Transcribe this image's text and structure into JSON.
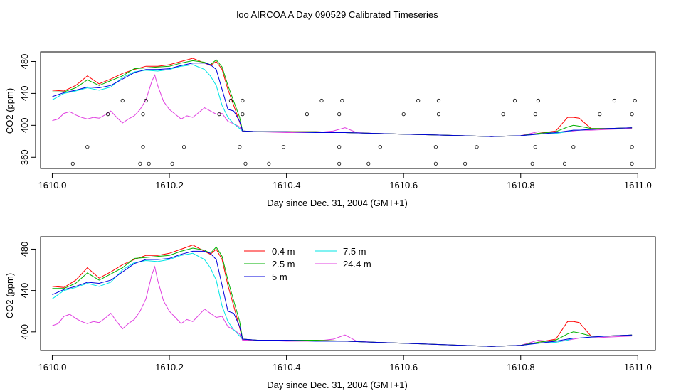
{
  "chart_data": [
    {
      "type": "line",
      "title": "loo AIRCOA A  Day 090529  Calibrated Timeseries",
      "xlabel": "Day since Dec. 31, 2004 (GMT+1)",
      "ylabel": "CO2 (ppm)",
      "xlim": [
        1609.98,
        1611.03
      ],
      "ylim": [
        346,
        492
      ],
      "xticks": [
        "1610.0",
        "1610.2",
        "1610.4",
        "1610.6",
        "1610.8",
        "1611.0"
      ],
      "yticks": [
        "360",
        "400",
        "440",
        "480"
      ],
      "legend": "none",
      "series": [
        {
          "name": "0.4 m",
          "color": "#ff0000",
          "x": [
            1610.0,
            1610.02,
            1610.04,
            1610.06,
            1610.08,
            1610.1,
            1610.12,
            1610.14,
            1610.16,
            1610.18,
            1610.2,
            1610.22,
            1610.24,
            1610.26,
            1610.27,
            1610.28,
            1610.29,
            1610.3,
            1610.31,
            1610.32,
            1610.325,
            1610.35,
            1610.4,
            1610.45,
            1610.5,
            1610.55,
            1610.6,
            1610.65,
            1610.7,
            1610.75,
            1610.8,
            1610.83,
            1610.86,
            1610.88,
            1610.89,
            1610.9,
            1610.92,
            1610.95,
            1610.99
          ],
          "y": [
            444,
            443,
            450,
            462,
            452,
            458,
            465,
            470,
            474,
            474,
            476,
            480,
            484,
            478,
            475,
            480,
            470,
            445,
            425,
            404,
            393,
            392,
            392,
            392,
            391,
            390,
            389,
            388,
            387,
            386,
            387,
            390,
            393,
            410,
            410,
            409,
            396,
            396,
            397
          ]
        },
        {
          "name": "2.5 m",
          "color": "#00b000",
          "x": [
            1610.0,
            1610.02,
            1610.04,
            1610.06,
            1610.08,
            1610.1,
            1610.12,
            1610.14,
            1610.16,
            1610.18,
            1610.2,
            1610.22,
            1610.24,
            1610.26,
            1610.27,
            1610.28,
            1610.29,
            1610.3,
            1610.31,
            1610.32,
            1610.325,
            1610.35,
            1610.4,
            1610.45,
            1610.5,
            1610.55,
            1610.6,
            1610.65,
            1610.7,
            1610.75,
            1610.8,
            1610.83,
            1610.86,
            1610.88,
            1610.89,
            1610.9,
            1610.92,
            1610.95,
            1610.99
          ],
          "y": [
            442,
            442,
            447,
            457,
            450,
            456,
            462,
            471,
            472,
            473,
            474,
            478,
            481,
            479,
            476,
            482,
            473,
            450,
            430,
            410,
            393,
            392,
            392,
            392,
            391,
            390,
            389,
            388,
            387,
            386,
            387,
            390,
            392,
            398,
            400,
            399,
            396,
            396,
            397
          ]
        },
        {
          "name": "5 m",
          "color": "#0000dd",
          "x": [
            1610.0,
            1610.02,
            1610.04,
            1610.06,
            1610.08,
            1610.1,
            1610.12,
            1610.14,
            1610.16,
            1610.18,
            1610.2,
            1610.22,
            1610.24,
            1610.26,
            1610.27,
            1610.28,
            1610.29,
            1610.3,
            1610.31,
            1610.32,
            1610.325,
            1610.35,
            1610.4,
            1610.45,
            1610.5,
            1610.55,
            1610.6,
            1610.65,
            1610.7,
            1610.75,
            1610.8,
            1610.83,
            1610.86,
            1610.88,
            1610.89,
            1610.9,
            1610.92,
            1610.95,
            1610.99
          ],
          "y": [
            436,
            441,
            444,
            448,
            447,
            450,
            458,
            466,
            470,
            470,
            471,
            475,
            478,
            478,
            476,
            470,
            445,
            420,
            418,
            405,
            393,
            392,
            392,
            391,
            391,
            390,
            389,
            388,
            387,
            386,
            387,
            389,
            391,
            393,
            394,
            394,
            395,
            396,
            397
          ]
        },
        {
          "name": "7.5 m",
          "color": "#00e5e5",
          "x": [
            1610.0,
            1610.02,
            1610.04,
            1610.06,
            1610.08,
            1610.1,
            1610.12,
            1610.14,
            1610.16,
            1610.18,
            1610.2,
            1610.22,
            1610.24,
            1610.26,
            1610.27,
            1610.28,
            1610.29,
            1610.3,
            1610.31,
            1610.32,
            1610.325,
            1610.35,
            1610.4,
            1610.45,
            1610.5,
            1610.55,
            1610.6,
            1610.65,
            1610.7,
            1610.75,
            1610.8,
            1610.83,
            1610.86,
            1610.88,
            1610.89,
            1610.9,
            1610.92,
            1610.95,
            1610.99
          ],
          "y": [
            432,
            440,
            443,
            447,
            444,
            448,
            460,
            467,
            469,
            468,
            470,
            474,
            476,
            470,
            462,
            450,
            425,
            410,
            402,
            396,
            393,
            392,
            392,
            391,
            391,
            390,
            389,
            388,
            387,
            386,
            387,
            389,
            390,
            392,
            394,
            394,
            395,
            396,
            397
          ]
        },
        {
          "name": "24.4 m",
          "color": "#e040e0",
          "x": [
            1610.0,
            1610.01,
            1610.02,
            1610.03,
            1610.04,
            1610.05,
            1610.06,
            1610.07,
            1610.08,
            1610.09,
            1610.1,
            1610.11,
            1610.12,
            1610.13,
            1610.14,
            1610.15,
            1610.16,
            1610.17,
            1610.175,
            1610.18,
            1610.19,
            1610.2,
            1610.21,
            1610.22,
            1610.23,
            1610.24,
            1610.25,
            1610.26,
            1610.27,
            1610.28,
            1610.29,
            1610.3,
            1610.31,
            1610.32,
            1610.325,
            1610.35,
            1610.4,
            1610.45,
            1610.48,
            1610.5,
            1610.52,
            1610.55,
            1610.6,
            1610.65,
            1610.7,
            1610.75,
            1610.8,
            1610.83,
            1610.86,
            1610.88,
            1610.9,
            1610.92,
            1610.95,
            1610.99
          ],
          "y": [
            406,
            408,
            415,
            417,
            413,
            410,
            408,
            410,
            409,
            413,
            418,
            410,
            403,
            408,
            412,
            420,
            432,
            455,
            463,
            450,
            430,
            420,
            414,
            408,
            412,
            410,
            416,
            422,
            418,
            414,
            415,
            405,
            402,
            398,
            392,
            392,
            391,
            391,
            393,
            397,
            391,
            390,
            389,
            388,
            387,
            386,
            387,
            392,
            390,
            392,
            394,
            394,
            395,
            396
          ]
        }
      ],
      "flags": {
        "x": [
          1610.035,
          1610.06,
          1610.095,
          1610.12,
          1610.15,
          1610.155,
          1610.155,
          1610.16,
          1610.165,
          1610.205,
          1610.225,
          1610.285,
          1610.305,
          1610.32,
          1610.325,
          1610.325,
          1610.33,
          1610.37,
          1610.395,
          1610.435,
          1610.46,
          1610.49,
          1610.49,
          1610.49,
          1610.495,
          1610.54,
          1610.56,
          1610.6,
          1610.625,
          1610.655,
          1610.655,
          1610.66,
          1610.66,
          1610.705,
          1610.725,
          1610.77,
          1610.79,
          1610.82,
          1610.825,
          1610.825,
          1610.83,
          1610.875,
          1610.89,
          1610.935,
          1610.96,
          1610.99,
          1610.99,
          1610.99,
          1610.995
        ],
        "y": [
          352,
          373,
          414,
          431,
          352,
          373,
          414,
          431,
          352,
          352,
          373,
          414,
          431,
          373,
          414,
          431,
          352,
          352,
          373,
          414,
          431,
          352,
          373,
          414,
          431,
          352,
          373,
          414,
          431,
          352,
          373,
          414,
          431,
          352,
          373,
          414,
          431,
          352,
          373,
          414,
          431,
          352,
          373,
          414,
          431,
          352,
          373,
          414,
          431
        ]
      }
    },
    {
      "type": "line",
      "title": "",
      "xlabel": "Day since Dec. 31, 2004 (GMT+1)",
      "ylabel": "CO2 (ppm)",
      "xlim": [
        1609.98,
        1611.03
      ],
      "ylim": [
        382,
        492
      ],
      "xticks": [
        "1610.0",
        "1610.2",
        "1610.4",
        "1610.6",
        "1610.8",
        "1611.0"
      ],
      "yticks": [
        "400",
        "440",
        "480"
      ],
      "legend": "top-left",
      "series": [
        {
          "name": "0.4 m",
          "color": "#ff0000",
          "ref": 0
        },
        {
          "name": "2.5 m",
          "color": "#00b000",
          "ref": 1
        },
        {
          "name": "5 m",
          "color": "#0000dd",
          "ref": 2
        },
        {
          "name": "7.5 m",
          "color": "#00e5e5",
          "ref": 3
        },
        {
          "name": "24.4 m",
          "color": "#e040e0",
          "ref": 4
        }
      ]
    }
  ]
}
